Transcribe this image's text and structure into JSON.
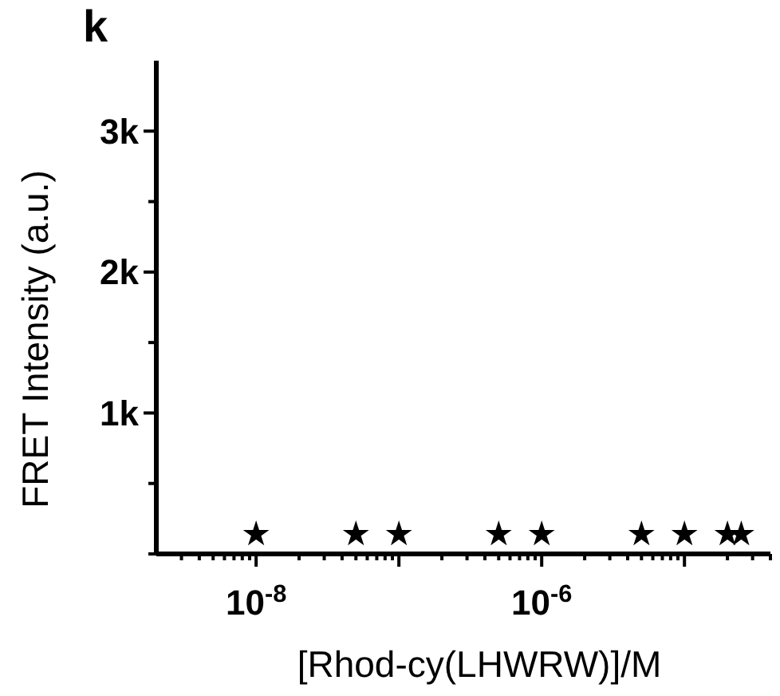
{
  "chart_data": {
    "type": "scatter",
    "title": "k",
    "xlabel": "[Rhod-cy(LHWRW)]/M",
    "ylabel": "FRET Intensity (a.u.)",
    "x": [
      1e-08,
      5e-08,
      1e-07,
      5e-07,
      1e-06,
      5e-06,
      1e-05,
      2e-05,
      2.5e-05
    ],
    "series": [
      {
        "color": "#000000",
        "values": [
          140,
          140,
          140,
          140,
          140,
          140,
          140,
          140,
          140
        ]
      }
    ],
    "log": "x",
    "marker": "star",
    "grid": false,
    "xlim": [
      2e-09,
      4e-05
    ],
    "xticks": [
      {
        "value": 3e-09,
        "label": null
      },
      {
        "value": 4e-09,
        "label": null
      },
      {
        "value": 5e-09,
        "label": null
      },
      {
        "value": 6e-09,
        "label": null
      },
      {
        "value": 7e-09,
        "label": null
      },
      {
        "value": 8e-09,
        "label": null
      },
      {
        "value": 9e-09,
        "label": null
      },
      {
        "value": 1e-08,
        "label": "10$^{-8}$"
      },
      {
        "value": 2e-08,
        "label": null
      },
      {
        "value": 3e-08,
        "label": null
      },
      {
        "value": 4e-08,
        "label": null
      },
      {
        "value": 5e-08,
        "label": null
      },
      {
        "value": 6e-08,
        "label": null
      },
      {
        "value": 7e-08,
        "label": null
      },
      {
        "value": 8e-08,
        "label": null
      },
      {
        "value": 9e-08,
        "label": null
      },
      {
        "value": 1e-07,
        "label": null
      },
      {
        "value": 2e-07,
        "label": null
      },
      {
        "value": 3e-07,
        "label": null
      },
      {
        "value": 4e-07,
        "label": null
      },
      {
        "value": 5e-07,
        "label": null
      },
      {
        "value": 6e-07,
        "label": null
      },
      {
        "value": 7e-07,
        "label": null
      },
      {
        "value": 8e-07,
        "label": null
      },
      {
        "value": 9e-07,
        "label": null
      },
      {
        "value": 1e-06,
        "label": "10$^{-6}$"
      },
      {
        "value": 2e-06,
        "label": null
      },
      {
        "value": 3e-06,
        "label": null
      },
      {
        "value": 4e-06,
        "label": null
      },
      {
        "value": 5e-06,
        "label": null
      },
      {
        "value": 6e-06,
        "label": null
      },
      {
        "value": 7e-06,
        "label": null
      },
      {
        "value": 8e-06,
        "label": null
      },
      {
        "value": 9e-06,
        "label": null
      },
      {
        "value": 1e-05,
        "label": null
      },
      {
        "value": 2e-05,
        "label": null
      },
      {
        "value": 3e-05,
        "label": null
      },
      {
        "value": 4e-05,
        "label": null
      }
    ],
    "ylim": [
      0,
      3500
    ],
    "yticks": [
      {
        "value": 0,
        "label": null
      },
      {
        "value": 500,
        "label": null
      },
      {
        "value": 1000,
        "label": "1k"
      },
      {
        "value": 1500,
        "label": null
      },
      {
        "value": 2000,
        "label": "2k"
      },
      {
        "value": 2500,
        "label": null
      },
      {
        "value": 3000,
        "label": "3k"
      }
    ]
  }
}
